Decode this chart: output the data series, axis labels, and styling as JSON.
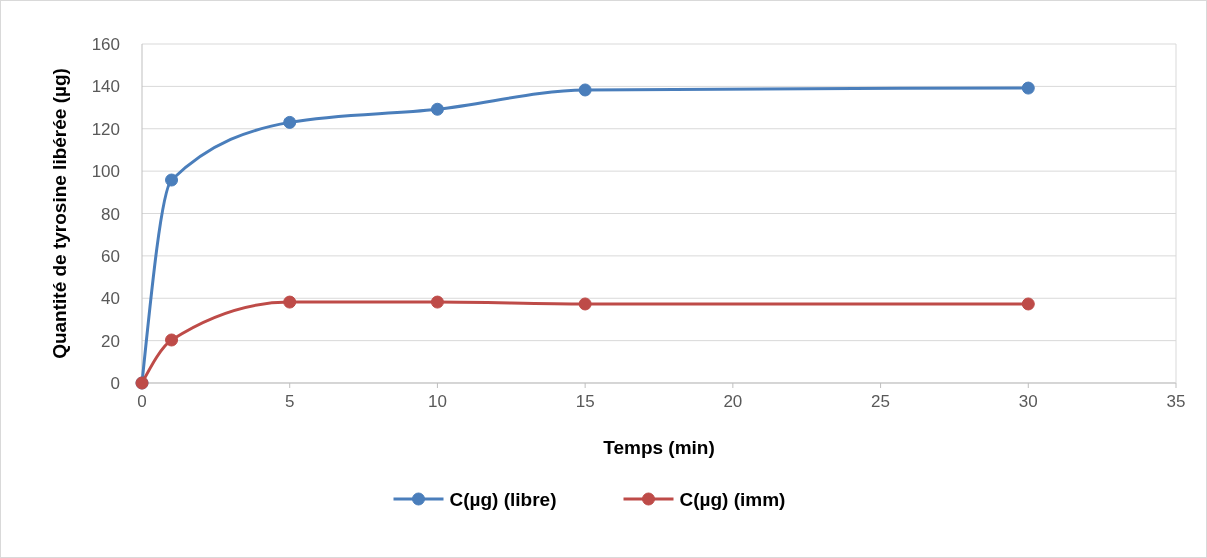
{
  "chart_data": {
    "type": "line",
    "xlabel": "Temps (min)",
    "ylabel": "Quantité de tyrosine libérée (µg)",
    "x": [
      0,
      1,
      5,
      10,
      15,
      30
    ],
    "series": [
      {
        "name": "C(µg) (libre)",
        "color": "#4a7ebb",
        "values": [
          0,
          95.8,
          123,
          129.2,
          138.3,
          139.2
        ]
      },
      {
        "name": "C(µg) (imm)",
        "color": "#be4b48",
        "values": [
          0,
          20.3,
          38.2,
          38.2,
          37.3,
          37.3
        ]
      }
    ],
    "xlim": [
      0,
      35
    ],
    "xticks": [
      0,
      5,
      10,
      15,
      20,
      25,
      30,
      35
    ],
    "ylim": [
      0,
      160
    ],
    "yticks": [
      0,
      20,
      40,
      60,
      80,
      100,
      120,
      140,
      160
    ],
    "grid": "y",
    "legend": "bottom",
    "marker": "circle",
    "line_style": "solid"
  }
}
